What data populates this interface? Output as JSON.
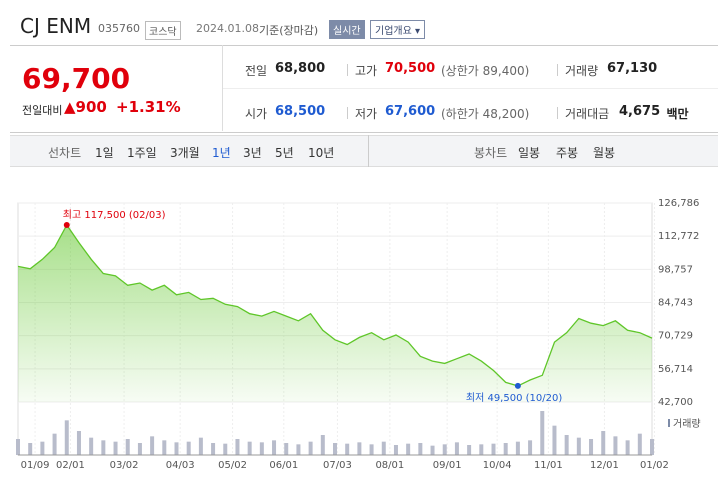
{
  "header": {
    "name": "CJ ENM",
    "code": "035760",
    "market": "코스닥",
    "date": "2024.01.08",
    "basis": "기준(장마감)",
    "realtime": "실시간",
    "overview": "기업개요"
  },
  "price": {
    "current": "69,700",
    "change_label": "전일대비",
    "change": "900",
    "change_rate": "+1.31%"
  },
  "stats": [
    {
      "label": "전일",
      "value": "68,800"
    },
    {
      "label": "고가",
      "value": "70,500",
      "note": "(상한가 89,400)"
    },
    {
      "label": "거래량",
      "value": "67,130"
    },
    {
      "label": "시가",
      "value": "68,500"
    },
    {
      "label": "저가",
      "value": "67,600",
      "note": "(하한가 48,200)"
    },
    {
      "label": "거래대금",
      "value": "4,675",
      "unit": "백만"
    }
  ],
  "tabs": {
    "line_label": "선차트",
    "line": [
      "1일",
      "1주일",
      "3개월",
      "1년",
      "3년",
      "5년",
      "10년"
    ],
    "selected_line": 3,
    "candle_label": "봉차트",
    "candle": [
      "일봉",
      "주봉",
      "월봉"
    ]
  },
  "chart_data": {
    "type": "area",
    "color": "#5fc629",
    "grid": true,
    "values": [
      100000,
      99000,
      103000,
      108000,
      117500,
      110000,
      103000,
      97000,
      96000,
      92000,
      93000,
      90000,
      92000,
      88000,
      89000,
      86000,
      86500,
      84000,
      83000,
      80000,
      79000,
      81000,
      79000,
      77000,
      80000,
      73000,
      69000,
      67000,
      70000,
      72000,
      69000,
      71000,
      68000,
      62000,
      60000,
      59000,
      61000,
      63000,
      60000,
      56000,
      51000,
      49500,
      52000,
      54000,
      68000,
      72000,
      78000,
      76000,
      75000,
      77000,
      73000,
      72000,
      69700
    ],
    "volume_label": "거래량",
    "volume": [
      120,
      90,
      100,
      160,
      260,
      180,
      130,
      110,
      100,
      120,
      90,
      140,
      110,
      95,
      100,
      130,
      90,
      85,
      120,
      100,
      95,
      110,
      90,
      80,
      100,
      150,
      90,
      85,
      95,
      80,
      100,
      75,
      85,
      90,
      70,
      80,
      95,
      75,
      80,
      85,
      90,
      100,
      110,
      330,
      220,
      150,
      130,
      120,
      180,
      140,
      110,
      160,
      120
    ],
    "ylim": [
      42700,
      126786
    ],
    "yticks": [
      {
        "value": 42700,
        "label": "42,700"
      },
      {
        "value": 56714,
        "label": "56,714"
      },
      {
        "value": 70729,
        "label": "70,729"
      },
      {
        "value": 84743,
        "label": "84,743"
      },
      {
        "value": 98757,
        "label": "98,757"
      },
      {
        "value": 112772,
        "label": "112,772"
      },
      {
        "value": 126786,
        "label": "126,786"
      }
    ],
    "xlim": [
      0,
      52
    ],
    "xticks": [
      {
        "value": 1.4,
        "label": "01/09"
      },
      {
        "value": 4.3,
        "label": "02/01"
      },
      {
        "value": 8.7,
        "label": "03/02"
      },
      {
        "value": 13.3,
        "label": "04/03"
      },
      {
        "value": 17.6,
        "label": "05/02"
      },
      {
        "value": 21.8,
        "label": "06/01"
      },
      {
        "value": 26.2,
        "label": "07/03"
      },
      {
        "value": 30.5,
        "label": "08/01"
      },
      {
        "value": 35.2,
        "label": "09/01"
      },
      {
        "value": 39.3,
        "label": "10/04"
      },
      {
        "value": 43.5,
        "label": "11/01"
      },
      {
        "value": 48.1,
        "label": "12/01"
      },
      {
        "value": 52.2,
        "label": "01/02"
      }
    ],
    "annotations": [
      {
        "text": "최고 117,500 (02/03)",
        "x": 4,
        "color": "#e0000b"
      },
      {
        "text": "최저 49,500 (10/20)",
        "x": 41,
        "color": "#1f5bd1"
      }
    ]
  }
}
